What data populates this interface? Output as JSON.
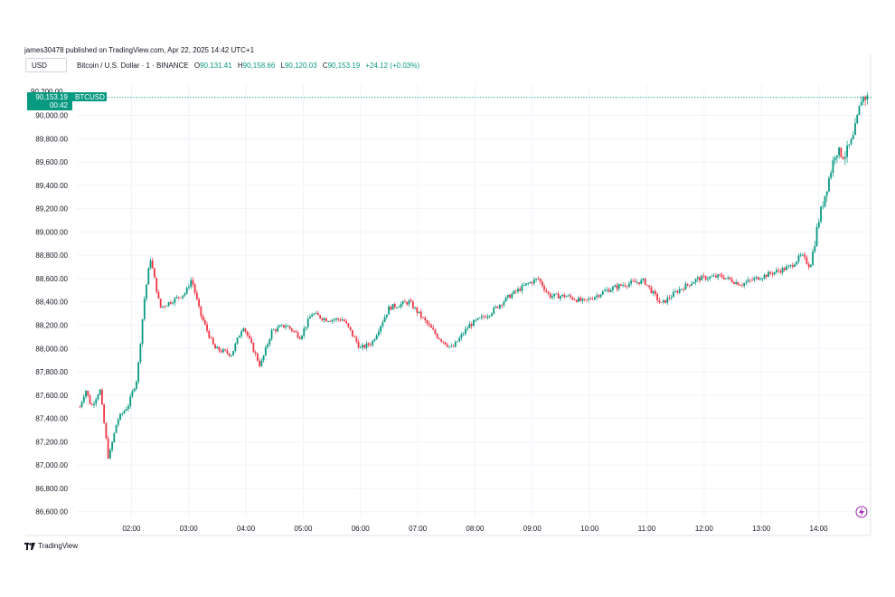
{
  "header": {
    "publisher": "james30478 published on TradingView.com, Apr 22, 2025 14:42 UTC+1",
    "currency": "USD"
  },
  "legend": {
    "symbol": "Bitcoin / U.S. Dollar · 1 · BINANCE",
    "open_label": "O",
    "open": "90,131.41",
    "high_label": "H",
    "high": "90,158.66",
    "low_label": "L",
    "low": "90,120.03",
    "close_label": "C",
    "close": "90,153.19",
    "change": "+24.12 (+0.03%)"
  },
  "price_tag": {
    "price": "90,153.19",
    "countdown": "00:42",
    "symbol": "BTCUSD",
    "partial_tick": "90,200.00"
  },
  "brand": {
    "name": "TradingView"
  },
  "colors": {
    "up": "#089981",
    "down": "#f23645",
    "grid": "#f0f3fa",
    "tag": "#089981"
  },
  "chart_data": {
    "type": "candlestick",
    "title": "Bitcoin / U.S. Dollar · 1 · BINANCE",
    "ylim": [
      86500,
      90250
    ],
    "y_ticks": [
      86600,
      86800,
      87000,
      87200,
      87400,
      87600,
      87800,
      88000,
      88200,
      88400,
      88600,
      88800,
      89000,
      89200,
      89400,
      89600,
      89800,
      90000
    ],
    "y_tick_labels": [
      "86,600.00",
      "86,800.00",
      "87,000.00",
      "87,200.00",
      "87,400.00",
      "87,600.00",
      "87,800.00",
      "88,000.00",
      "88,200.00",
      "88,400.00",
      "88,600.00",
      "88,800.00",
      "89,000.00",
      "89,200.00",
      "89,400.00",
      "89,600.00",
      "89,800.00",
      "90,000.00"
    ],
    "x_start_hour": 1.1,
    "x_end_hour": 14.85,
    "x_ticks": [
      2,
      3,
      4,
      5,
      6,
      7,
      8,
      9,
      10,
      11,
      12,
      13,
      14
    ],
    "x_tick_labels": [
      "02:00",
      "03:00",
      "04:00",
      "05:00",
      "06:00",
      "07:00",
      "08:00",
      "09:00",
      "10:00",
      "11:00",
      "12:00",
      "13:00",
      "14:00"
    ],
    "last_price": 90153.19,
    "price_path": [
      [
        1.1,
        87500
      ],
      [
        1.2,
        87650
      ],
      [
        1.3,
        87500
      ],
      [
        1.45,
        87650
      ],
      [
        1.6,
        87050
      ],
      [
        1.75,
        87380
      ],
      [
        1.95,
        87520
      ],
      [
        2.1,
        87750
      ],
      [
        2.22,
        88400
      ],
      [
        2.33,
        88780
      ],
      [
        2.5,
        88350
      ],
      [
        2.75,
        88420
      ],
      [
        2.95,
        88480
      ],
      [
        3.05,
        88600
      ],
      [
        3.2,
        88300
      ],
      [
        3.45,
        88000
      ],
      [
        3.75,
        87950
      ],
      [
        3.95,
        88200
      ],
      [
        4.25,
        87850
      ],
      [
        4.45,
        88150
      ],
      [
        4.7,
        88200
      ],
      [
        4.95,
        88100
      ],
      [
        5.15,
        88300
      ],
      [
        5.4,
        88250
      ],
      [
        5.7,
        88250
      ],
      [
        6.0,
        88000
      ],
      [
        6.2,
        88050
      ],
      [
        6.5,
        88350
      ],
      [
        6.85,
        88400
      ],
      [
        7.1,
        88250
      ],
      [
        7.35,
        88100
      ],
      [
        7.6,
        88000
      ],
      [
        7.9,
        88200
      ],
      [
        8.25,
        88300
      ],
      [
        8.6,
        88450
      ],
      [
        8.9,
        88550
      ],
      [
        9.1,
        88600
      ],
      [
        9.3,
        88450
      ],
      [
        9.6,
        88450
      ],
      [
        9.9,
        88400
      ],
      [
        10.3,
        88500
      ],
      [
        10.6,
        88550
      ],
      [
        10.95,
        88580
      ],
      [
        11.25,
        88380
      ],
      [
        11.55,
        88500
      ],
      [
        11.9,
        88600
      ],
      [
        12.3,
        88620
      ],
      [
        12.65,
        88550
      ],
      [
        12.9,
        88600
      ],
      [
        13.2,
        88650
      ],
      [
        13.5,
        88700
      ],
      [
        13.7,
        88800
      ],
      [
        13.85,
        88700
      ],
      [
        14.0,
        89100
      ],
      [
        14.15,
        89400
      ],
      [
        14.3,
        89700
      ],
      [
        14.45,
        89650
      ],
      [
        14.6,
        89800
      ],
      [
        14.75,
        90153
      ]
    ]
  }
}
